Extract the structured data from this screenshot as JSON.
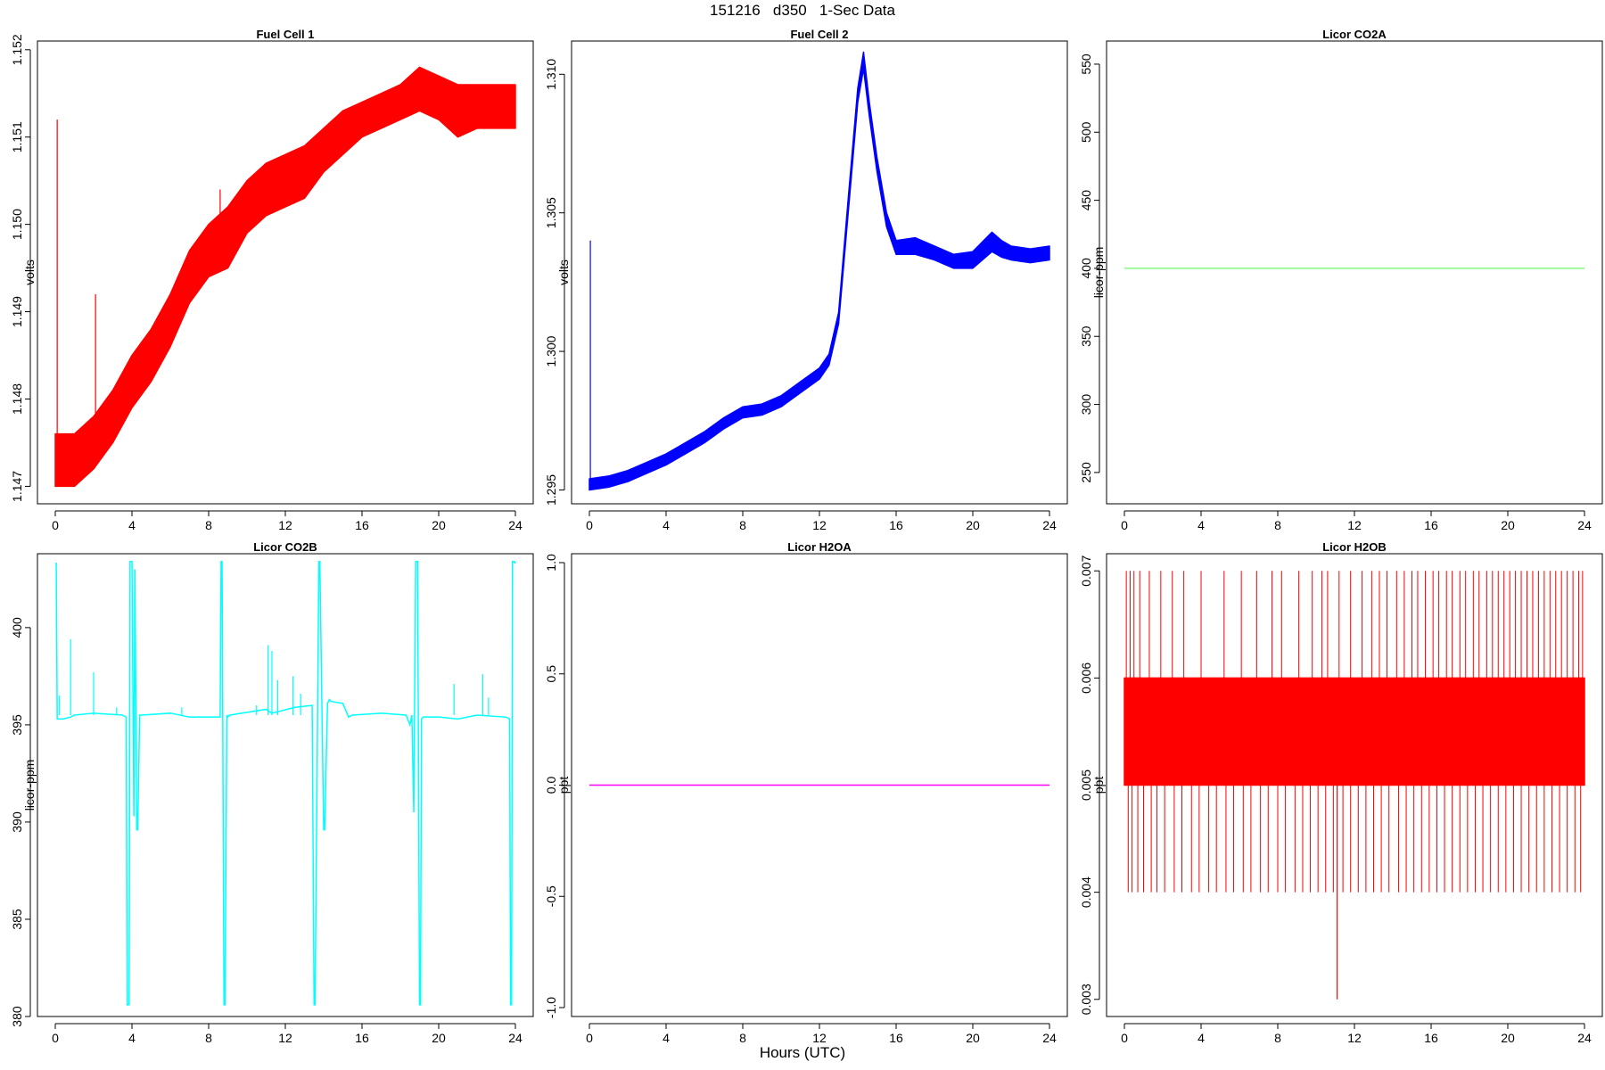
{
  "page": {
    "title": "151216   d350   1-Sec Data",
    "xlabel": "Hours (UTC)"
  },
  "chart_data": [
    {
      "type": "line",
      "title": "Fuel Cell 1",
      "xlabel": "",
      "ylabel": "volts",
      "xlim": [
        0,
        24
      ],
      "ylim": [
        1.1468,
        1.1521
      ],
      "xticks": [
        0,
        4,
        8,
        12,
        16,
        20,
        24
      ],
      "yticks": [
        1.147,
        1.148,
        1.149,
        1.15,
        1.151,
        1.152
      ],
      "ytick_labels": [
        "1.147",
        "1.148",
        "1.149",
        "1.150",
        "1.151",
        "1.152"
      ],
      "color": "#ff0000",
      "band": true,
      "x": [
        0,
        1,
        2,
        3,
        4,
        5,
        6,
        7,
        8,
        9,
        10,
        11,
        12,
        13,
        14,
        15,
        16,
        17,
        18,
        19,
        20,
        21,
        22,
        23,
        24
      ],
      "ylow": [
        1.147,
        1.147,
        1.1472,
        1.1475,
        1.1479,
        1.1482,
        1.1486,
        1.1491,
        1.1494,
        1.1495,
        1.1499,
        1.1501,
        1.1502,
        1.1503,
        1.1506,
        1.1508,
        1.151,
        1.1511,
        1.1512,
        1.1513,
        1.1512,
        1.151,
        1.1511,
        1.1511,
        1.1511
      ],
      "yhigh": [
        1.1476,
        1.1476,
        1.1478,
        1.1481,
        1.1485,
        1.1488,
        1.1492,
        1.1497,
        1.15,
        1.1502,
        1.1505,
        1.1507,
        1.1508,
        1.1509,
        1.1511,
        1.1513,
        1.1514,
        1.1515,
        1.1516,
        1.1518,
        1.1517,
        1.1516,
        1.1516,
        1.1516,
        1.1516
      ],
      "spikes": [
        [
          0.1,
          1.1512
        ],
        [
          2.1,
          1.1492
        ],
        [
          8.6,
          1.1504
        ]
      ]
    },
    {
      "type": "line",
      "title": "Fuel Cell 2",
      "xlabel": "",
      "ylabel": "volts",
      "xlim": [
        0,
        24
      ],
      "ylim": [
        1.2945,
        1.3112
      ],
      "xticks": [
        0,
        4,
        8,
        12,
        16,
        20,
        24
      ],
      "yticks": [
        1.295,
        1.3,
        1.305,
        1.31
      ],
      "ytick_labels": [
        "1.295",
        "1.300",
        "1.305",
        "1.310"
      ],
      "color": "#0000ff",
      "band": true,
      "x": [
        0,
        1,
        2,
        3,
        4,
        5,
        6,
        7,
        8,
        9,
        10,
        11,
        12,
        12.5,
        13,
        13.5,
        14,
        14.3,
        14.6,
        15,
        15.5,
        16,
        17,
        18,
        19,
        20,
        21,
        21.5,
        22,
        23,
        24
      ],
      "ylow": [
        1.295,
        1.2951,
        1.2953,
        1.2956,
        1.2959,
        1.2963,
        1.2967,
        1.2972,
        1.2976,
        1.2977,
        1.298,
        1.2985,
        1.299,
        1.2995,
        1.301,
        1.305,
        1.309,
        1.3102,
        1.3085,
        1.3065,
        1.3045,
        1.3035,
        1.3035,
        1.3033,
        1.303,
        1.303,
        1.3036,
        1.3034,
        1.3033,
        1.3032,
        1.3033
      ],
      "yhigh": [
        1.2954,
        1.2955,
        1.2957,
        1.296,
        1.2963,
        1.2967,
        1.2971,
        1.2976,
        1.298,
        1.2981,
        1.2984,
        1.2989,
        1.2994,
        1.2999,
        1.3014,
        1.3055,
        1.3095,
        1.3108,
        1.309,
        1.307,
        1.305,
        1.304,
        1.3041,
        1.3038,
        1.3035,
        1.3036,
        1.3043,
        1.304,
        1.3038,
        1.3037,
        1.3038
      ],
      "spikes": [
        [
          0.05,
          1.304
        ]
      ]
    },
    {
      "type": "line",
      "title": "Licor CO2A",
      "xlabel": "",
      "ylabel": "licor-ppm",
      "xlim": [
        0,
        24
      ],
      "ylim": [
        227,
        567
      ],
      "xticks": [
        0,
        4,
        8,
        12,
        16,
        20,
        24
      ],
      "yticks": [
        250,
        300,
        350,
        400,
        450,
        500,
        550
      ],
      "ytick_labels": [
        "250",
        "300",
        "350",
        "400",
        "450",
        "500",
        "550"
      ],
      "color": "#80ff80",
      "x": [
        0,
        24
      ],
      "y": [
        400,
        400
      ]
    },
    {
      "type": "line",
      "title": "Licor CO2B",
      "xlabel": "",
      "ylabel": "licor-ppm",
      "xlim": [
        0,
        24
      ],
      "ylim": [
        380,
        403.8
      ],
      "xticks": [
        0,
        4,
        8,
        12,
        16,
        20,
        24
      ],
      "yticks": [
        380,
        385,
        390,
        395,
        400
      ],
      "ytick_labels": [
        "380",
        "385",
        "390",
        "395",
        "400"
      ],
      "color": "#00ffff",
      "x": [
        0,
        0.05,
        0.1,
        0.4,
        0.8,
        1.0,
        2.0,
        3.5,
        3.7,
        3.75,
        3.85,
        3.9,
        4.0,
        4.1,
        4.15,
        4.25,
        4.3,
        4.4,
        4.5,
        6,
        7,
        8.6,
        8.65,
        8.7,
        8.8,
        8.85,
        8.95,
        9.0,
        9.1,
        11,
        11.3,
        12.5,
        13.4,
        13.5,
        13.55,
        13.75,
        13.8,
        14.0,
        14.05,
        14.2,
        14.3,
        14.4,
        15,
        15.3,
        15.5,
        17,
        18.3,
        18.5,
        18.6,
        18.7,
        18.8,
        18.9,
        19.0,
        19.05,
        19.1,
        19.2,
        20,
        21,
        22,
        23.5,
        23.7,
        23.75,
        23.8,
        23.85,
        23.95,
        24.0
      ],
      "y": [
        403.3,
        403.3,
        395.3,
        395.3,
        395.4,
        395.5,
        395.6,
        395.5,
        395.4,
        380.6,
        380.6,
        403.4,
        403.4,
        390.3,
        403.0,
        389.6,
        389.6,
        395.5,
        395.5,
        395.6,
        395.4,
        395.4,
        403.4,
        403.4,
        380.6,
        380.6,
        395.5,
        395.4,
        395.5,
        395.8,
        395.6,
        395.9,
        396.0,
        380.6,
        380.6,
        403.4,
        403.4,
        389.6,
        389.6,
        396.1,
        396.3,
        396.2,
        396.1,
        395.4,
        395.5,
        395.6,
        395.5,
        395.0,
        395.5,
        390.5,
        403.4,
        403.4,
        380.6,
        380.6,
        395.3,
        395.4,
        395.4,
        395.3,
        395.5,
        395.4,
        395.3,
        380.6,
        380.6,
        403.4,
        403.4,
        403.3
      ],
      "spikes": [
        [
          0.2,
          396.5
        ],
        [
          0.8,
          399.4
        ],
        [
          2.0,
          397.7
        ],
        [
          3.2,
          395.9
        ],
        [
          6.6,
          395.9
        ],
        [
          10.5,
          396.0
        ],
        [
          11.1,
          399.1
        ],
        [
          11.3,
          398.8
        ],
        [
          11.6,
          397.3
        ],
        [
          12.4,
          397.5
        ],
        [
          12.8,
          396.6
        ],
        [
          20.8,
          397.1
        ],
        [
          22.3,
          397.6
        ],
        [
          22.6,
          396.4
        ]
      ]
    },
    {
      "type": "line",
      "title": "Licor H2OA",
      "xlabel": "",
      "ylabel": "ppt",
      "xlim": [
        0,
        24
      ],
      "ylim": [
        -1.04,
        1.04
      ],
      "xticks": [
        0,
        4,
        8,
        12,
        16,
        20,
        24
      ],
      "yticks": [
        -1.0,
        -0.5,
        0.0,
        0.5,
        1.0
      ],
      "ytick_labels": [
        "-1.0",
        "-0.5",
        "0.0",
        "0.5",
        "1.0"
      ],
      "color": "#ff00ff",
      "x": [
        0,
        24
      ],
      "y": [
        0,
        0
      ]
    },
    {
      "type": "line",
      "title": "Licor H2OB",
      "xlabel": "",
      "ylabel": "ppt",
      "xlim": [
        0,
        24
      ],
      "ylim": [
        0.00284,
        0.00716
      ],
      "xticks": [
        0,
        4,
        8,
        12,
        16,
        20,
        24
      ],
      "yticks": [
        0.003,
        0.004,
        0.005,
        0.006,
        0.007
      ],
      "ytick_labels": [
        "0.003",
        "0.004",
        "0.005",
        "0.006",
        "0.007"
      ],
      "color": "#ff0000",
      "band": true,
      "x": [
        0,
        24
      ],
      "ylow": [
        0.005,
        0.005
      ],
      "yhigh": [
        0.006,
        0.006
      ],
      "spikes_up_to": 0.007,
      "spikes_down_to": 0.004,
      "spike_up_x": [
        0.1,
        0.3,
        0.5,
        0.8,
        1.3,
        1.9,
        2.5,
        3.1,
        4.0,
        5.2,
        6.1,
        6.9,
        7.7,
        8.2,
        9.1,
        9.8,
        10.3,
        10.6,
        11.2,
        11.8,
        12.4,
        12.9,
        13.3,
        13.7,
        14.2,
        14.6,
        15.0,
        15.3,
        15.7,
        16.1,
        16.4,
        16.8,
        17.1,
        17.5,
        17.8,
        18.2,
        18.5,
        18.9,
        19.2,
        19.5,
        19.8,
        20.1,
        20.4,
        20.7,
        21.0,
        21.3,
        21.6,
        21.9,
        22.2,
        22.5,
        22.8,
        23.1,
        23.4,
        23.7,
        23.9
      ],
      "spike_down_x": [
        0.2,
        0.4,
        0.7,
        1.0,
        1.4,
        1.7,
        2.1,
        2.6,
        3.0,
        3.5,
        3.9,
        4.4,
        4.8,
        5.3,
        5.7,
        6.2,
        6.6,
        7.1,
        7.5,
        8.0,
        8.4,
        8.9,
        9.3,
        9.7,
        10.1,
        10.5,
        10.9,
        11.4,
        11.8,
        12.2,
        12.6,
        13.0,
        13.4,
        13.8,
        14.3,
        14.7,
        15.1,
        15.5,
        15.9,
        16.3,
        16.7,
        17.1,
        17.5,
        17.9,
        18.3,
        18.7,
        19.1,
        19.5,
        19.9,
        20.3,
        20.7,
        21.1,
        21.5,
        21.9,
        22.3,
        22.7,
        23.1,
        23.5,
        23.8
      ],
      "spikes": [
        [
          11.1,
          0.003
        ]
      ]
    }
  ]
}
